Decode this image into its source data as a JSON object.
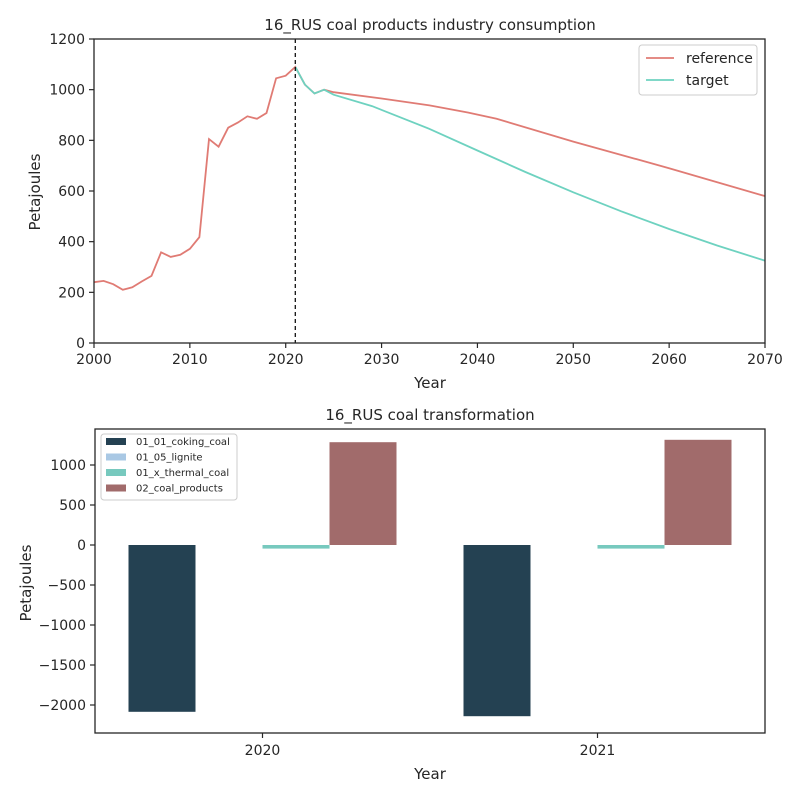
{
  "chart_data": [
    {
      "type": "line",
      "title": "16_RUS coal products industry consumption",
      "xlabel": "Year",
      "ylabel": "Petajoules",
      "xlim": [
        2000,
        2070
      ],
      "ylim": [
        0,
        1200
      ],
      "xticks": [
        2000,
        2010,
        2020,
        2030,
        2040,
        2050,
        2060,
        2070
      ],
      "yticks": [
        0,
        200,
        400,
        600,
        800,
        1000,
        1200
      ],
      "xtick_labels": [
        "2000",
        "2010",
        "2020",
        "2030",
        "2040",
        "2050",
        "2060",
        "2070"
      ],
      "ytick_labels": [
        "0",
        "200",
        "400",
        "600",
        "800",
        "1000",
        "1200"
      ],
      "grid": false,
      "legend": "top-right",
      "vline_x": 2021,
      "series": [
        {
          "name": "reference",
          "color": "#e07b74",
          "points": [
            [
              2000,
              240
            ],
            [
              2001,
              245
            ],
            [
              2002,
              232
            ],
            [
              2003,
              210
            ],
            [
              2004,
              220
            ],
            [
              2005,
              243
            ],
            [
              2006,
              265
            ],
            [
              2007,
              358
            ],
            [
              2008,
              340
            ],
            [
              2009,
              348
            ],
            [
              2010,
              372
            ],
            [
              2011,
              418
            ],
            [
              2012,
              805
            ],
            [
              2013,
              775
            ],
            [
              2014,
              850
            ],
            [
              2015,
              870
            ],
            [
              2016,
              895
            ],
            [
              2017,
              885
            ],
            [
              2018,
              908
            ],
            [
              2019,
              1045
            ],
            [
              2020,
              1055
            ],
            [
              2021,
              1090
            ],
            [
              2022,
              1020
            ],
            [
              2023,
              985
            ],
            [
              2024,
              1000
            ],
            [
              2025,
              990
            ],
            [
              2030,
              965
            ],
            [
              2035,
              938
            ],
            [
              2039,
              910
            ],
            [
              2042,
              885
            ],
            [
              2050,
              795
            ],
            [
              2060,
              690
            ],
            [
              2070,
              580
            ]
          ]
        },
        {
          "name": "target",
          "color": "#6ed2c0",
          "points": [
            [
              2021,
              1090
            ],
            [
              2022,
              1020
            ],
            [
              2023,
              985
            ],
            [
              2024,
              1000
            ],
            [
              2025,
              980
            ],
            [
              2029,
              935
            ],
            [
              2035,
              845
            ],
            [
              2040,
              760
            ],
            [
              2045,
              675
            ],
            [
              2050,
              595
            ],
            [
              2055,
              520
            ],
            [
              2060,
              450
            ],
            [
              2065,
              385
            ],
            [
              2070,
              325
            ]
          ]
        }
      ]
    },
    {
      "type": "bar",
      "title": "16_RUS coal transformation",
      "xlabel": "Year",
      "ylabel": "Petajoules",
      "categories": [
        "2020",
        "2021"
      ],
      "ylim": [
        -2350,
        1450
      ],
      "yticks": [
        -2000,
        -1500,
        -1000,
        -500,
        0,
        500,
        1000
      ],
      "ytick_labels": [
        "−2000",
        "−1500",
        "−1000",
        "−500",
        "0",
        "500",
        "1000"
      ],
      "grid": false,
      "legend": "top-left",
      "series": [
        {
          "name": "01_01_coking_coal",
          "color": "#244152",
          "values": [
            -2085,
            -2140
          ]
        },
        {
          "name": "01_05_lignite",
          "color": "#a9c8e4",
          "values": [
            0,
            0
          ]
        },
        {
          "name": "01_x_thermal_coal",
          "color": "#77c9be",
          "values": [
            -45,
            -45
          ]
        },
        {
          "name": "02_coal_products",
          "color": "#a16b6b",
          "values": [
            1285,
            1315
          ]
        }
      ]
    }
  ]
}
